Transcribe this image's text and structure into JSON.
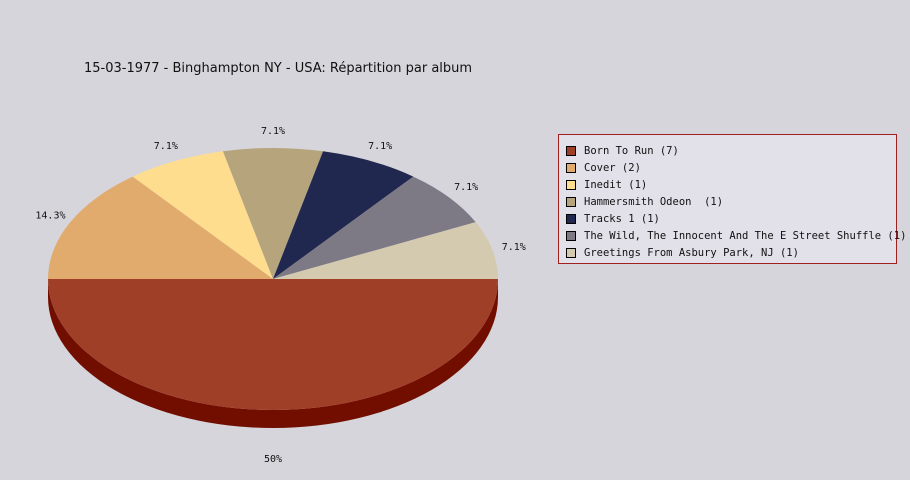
{
  "title": "15-03-1977 - Binghampton NY - USA:  Répartition par album",
  "chart_data": {
    "type": "pie",
    "title": "15-03-1977 - Binghampton NY - USA:  Répartition par album",
    "categories": [
      "Born To Run (7)",
      "Cover (2)",
      "Inedit (1)",
      "Hammersmith Odeon  (1)",
      "Tracks 1 (1)",
      "The Wild, The Innocent And The E Street Shuffle (1)",
      "Greetings From Asbury Park, NJ (1)"
    ],
    "values": [
      7,
      2,
      1,
      1,
      1,
      1,
      1
    ],
    "percent_labels": [
      "50%",
      "14.3%",
      "7.1%",
      "7.1%",
      "7.1%",
      "7.1%",
      "7.1%"
    ],
    "colors": [
      "#a03f27",
      "#e0ab6c",
      "#fedd8f",
      "#b6a47d",
      "#21284f",
      "#7d7a86",
      "#d4cab0"
    ],
    "shadow_color": "#720e00",
    "legend_position": "right"
  }
}
